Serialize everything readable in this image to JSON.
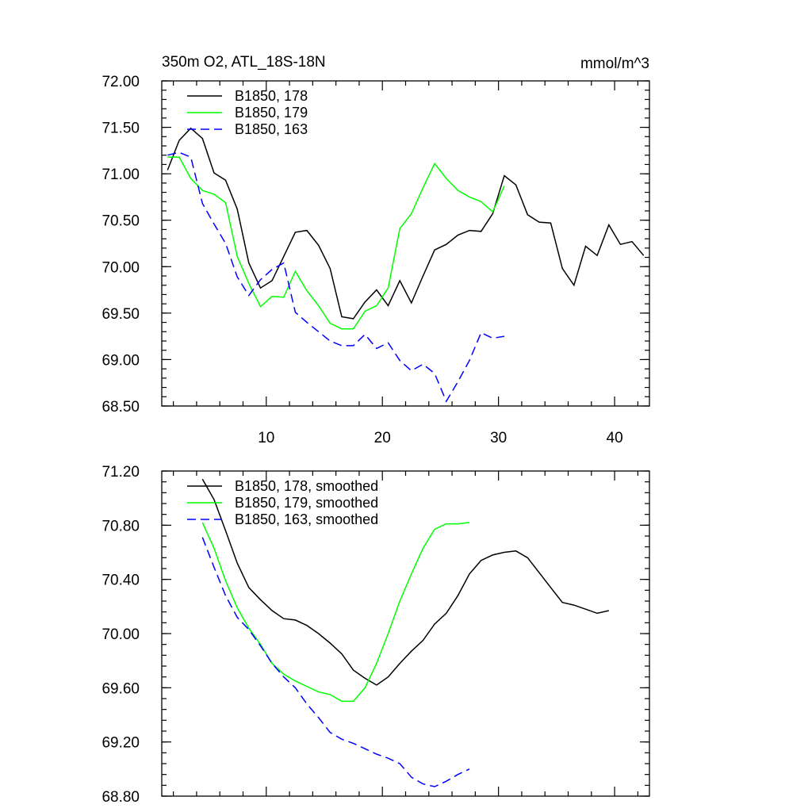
{
  "chart_data": [
    {
      "type": "line",
      "title_left": "350m O2, ATL_18S-18N",
      "title_right": "mmol/m^3",
      "xlabel": "",
      "ylabel": "",
      "xlim": [
        1,
        43
      ],
      "ylim": [
        68.5,
        72.0
      ],
      "x_ticks": [
        10,
        20,
        30,
        40
      ],
      "x_tick_labels": [
        "10",
        "20",
        "30",
        "40"
      ],
      "y_ticks": [
        68.5,
        69.0,
        69.5,
        70.0,
        70.5,
        71.0,
        71.5,
        72.0
      ],
      "y_tick_labels": [
        "68.50",
        "69.00",
        "69.50",
        "70.00",
        "70.50",
        "71.00",
        "71.50",
        "72.00"
      ],
      "legend_position": "top-left",
      "series": [
        {
          "name": "B1850, 178",
          "color": "#000000",
          "dash": "solid",
          "x": [
            1.5,
            2.5,
            3.5,
            4.5,
            5.5,
            6.5,
            7.5,
            8.5,
            9.5,
            10.5,
            11.5,
            12.5,
            13.5,
            14.5,
            15.5,
            16.5,
            17.5,
            18.5,
            19.5,
            20.5,
            21.5,
            22.5,
            23.5,
            24.5,
            25.5,
            26.5,
            27.5,
            28.5,
            29.5,
            30.5,
            31.5,
            32.5,
            33.5,
            34.5,
            35.5,
            36.5,
            37.5,
            38.5,
            39.5,
            40.5,
            41.5,
            42.5
          ],
          "values": [
            71.04,
            71.36,
            71.49,
            71.38,
            71.01,
            70.93,
            70.62,
            70.04,
            69.77,
            69.85,
            70.11,
            70.37,
            70.39,
            70.23,
            69.98,
            69.46,
            69.44,
            69.62,
            69.75,
            69.58,
            69.85,
            69.61,
            69.9,
            70.18,
            70.24,
            70.34,
            70.39,
            70.38,
            70.57,
            70.98,
            70.88,
            70.56,
            70.48,
            70.47,
            69.98,
            69.8,
            70.22,
            70.12,
            70.45,
            70.24,
            70.27,
            70.12
          ]
        },
        {
          "name": "B1850, 179",
          "color": "#00ff00",
          "dash": "solid",
          "x": [
            1.5,
            2.5,
            3.5,
            4.5,
            5.5,
            6.5,
            7.5,
            8.5,
            9.5,
            10.5,
            11.5,
            12.5,
            13.5,
            14.5,
            15.5,
            16.5,
            17.5,
            18.5,
            19.5,
            20.5,
            21.5,
            22.5,
            23.5,
            24.5,
            25.5,
            26.5,
            27.5,
            28.5,
            29.5,
            30.5
          ],
          "values": [
            71.18,
            71.18,
            70.95,
            70.82,
            70.78,
            70.69,
            70.11,
            69.82,
            69.57,
            69.68,
            69.67,
            69.95,
            69.74,
            69.58,
            69.39,
            69.33,
            69.33,
            69.52,
            69.58,
            69.77,
            70.41,
            70.57,
            70.85,
            71.11,
            70.95,
            70.82,
            70.75,
            70.7,
            70.59,
            70.87
          ]
        },
        {
          "name": "B1850, 163",
          "color": "#0000ff",
          "dash": "dashed",
          "x": [
            1.5,
            2.5,
            3.5,
            4.5,
            5.5,
            6.5,
            7.5,
            8.5,
            9.5,
            10.5,
            11.5,
            12.5,
            13.5,
            14.5,
            15.5,
            16.5,
            17.5,
            18.5,
            19.5,
            20.5,
            21.5,
            22.5,
            23.5,
            24.5,
            25.5,
            26.5,
            27.5,
            28.5,
            29.5,
            30.5
          ],
          "values": [
            71.2,
            71.23,
            71.18,
            70.68,
            70.46,
            70.25,
            69.89,
            69.69,
            69.86,
            69.97,
            70.04,
            69.51,
            69.4,
            69.3,
            69.2,
            69.15,
            69.15,
            69.27,
            69.12,
            69.18,
            68.99,
            68.88,
            68.95,
            68.85,
            68.55,
            68.76,
            68.99,
            69.29,
            69.23,
            69.25
          ]
        }
      ]
    },
    {
      "type": "line",
      "xlabel": "",
      "ylabel": "",
      "xlim": [
        1,
        43
      ],
      "ylim": [
        68.8,
        71.2
      ],
      "x_ticks": [
        10,
        20,
        30,
        40
      ],
      "y_ticks": [
        68.8,
        69.2,
        69.6,
        70.0,
        70.4,
        70.8,
        71.2
      ],
      "y_tick_labels": [
        "68.80",
        "69.20",
        "69.60",
        "70.00",
        "70.40",
        "70.80",
        "71.20"
      ],
      "legend_position": "top-left",
      "series": [
        {
          "name": "B1850, 178, smoothed",
          "color": "#000000",
          "dash": "solid",
          "x": [
            4.5,
            5.5,
            6.5,
            7.5,
            8.5,
            9.5,
            10.5,
            11.5,
            12.5,
            13.5,
            14.5,
            15.5,
            16.5,
            17.5,
            18.5,
            19.5,
            20.5,
            21.5,
            22.5,
            23.5,
            24.5,
            25.5,
            26.5,
            27.5,
            28.5,
            29.5,
            30.5,
            31.5,
            32.5,
            33.5,
            34.5,
            35.5,
            36.5,
            37.5,
            38.5,
            39.5
          ],
          "values": [
            71.14,
            70.99,
            70.76,
            70.52,
            70.34,
            70.25,
            70.17,
            70.11,
            70.1,
            70.06,
            70.0,
            69.93,
            69.85,
            69.73,
            69.67,
            69.62,
            69.68,
            69.78,
            69.87,
            69.95,
            70.07,
            70.15,
            70.28,
            70.44,
            70.54,
            70.58,
            70.6,
            70.61,
            70.56,
            70.45,
            70.34,
            70.23,
            70.21,
            70.18,
            70.15,
            70.17
          ]
        },
        {
          "name": "B1850, 179, smoothed",
          "color": "#00ff00",
          "dash": "solid",
          "x": [
            4.5,
            5.5,
            6.5,
            7.5,
            8.5,
            9.5,
            10.5,
            11.5,
            12.5,
            13.5,
            14.5,
            15.5,
            16.5,
            17.5,
            18.5,
            19.5,
            20.5,
            21.5,
            22.5,
            23.5,
            24.5,
            25.5,
            26.5,
            27.5
          ],
          "values": [
            70.82,
            70.63,
            70.39,
            70.19,
            70.04,
            69.92,
            69.78,
            69.7,
            69.65,
            69.61,
            69.57,
            69.55,
            69.5,
            69.5,
            69.6,
            69.78,
            70.0,
            70.24,
            70.44,
            70.63,
            70.77,
            70.81,
            70.81,
            70.82
          ]
        },
        {
          "name": "B1850, 163, smoothed",
          "color": "#0000ff",
          "dash": "dashed",
          "x": [
            4.5,
            5.5,
            6.5,
            7.5,
            8.5,
            9.5,
            10.5,
            11.5,
            12.5,
            13.5,
            14.5,
            15.5,
            16.5,
            17.5,
            18.5,
            19.5,
            20.5,
            21.5,
            22.5,
            23.5,
            24.5,
            25.5,
            26.5,
            27.5
          ],
          "values": [
            70.71,
            70.49,
            70.28,
            70.12,
            70.03,
            69.91,
            69.78,
            69.68,
            69.6,
            69.48,
            69.38,
            69.27,
            69.22,
            69.19,
            69.15,
            69.11,
            69.08,
            69.04,
            68.94,
            68.89,
            68.87,
            68.91,
            68.96,
            69.0
          ]
        }
      ]
    }
  ]
}
